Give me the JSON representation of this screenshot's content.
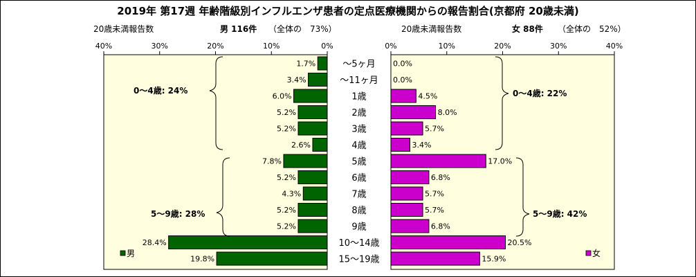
{
  "chart_data": {
    "type": "bar",
    "title": "2019年 第17週 年齢階級別インフルエンザ患者の定点医療機関からの報告割合(京都府 20歳未満)",
    "categories": [
      "〜5ヶ月",
      "〜11ヶ月",
      "1歳",
      "2歳",
      "3歳",
      "4歳",
      "5歳",
      "6歳",
      "7歳",
      "8歳",
      "9歳",
      "10〜14歳",
      "15〜19歳"
    ],
    "series": [
      {
        "name": "男",
        "color": "#006400",
        "values": [
          1.7,
          3.4,
          6.0,
          5.2,
          5.2,
          2.6,
          7.8,
          5.2,
          4.3,
          5.2,
          5.2,
          28.4,
          19.8
        ],
        "labels": [
          "1.7%",
          "3.4%",
          "6.0%",
          "5.2%",
          "5.2%",
          "2.6%",
          "7.8%",
          "5.2%",
          "4.3%",
          "5.2%",
          "5.2%",
          "28.4%",
          "19.8%"
        ]
      },
      {
        "name": "女",
        "color": "#cc00cc",
        "values": [
          0.0,
          0.0,
          4.5,
          8.0,
          5.7,
          3.4,
          17.0,
          6.8,
          5.7,
          5.7,
          6.8,
          20.5,
          15.9
        ],
        "labels": [
          "0.0%",
          "0.0%",
          "4.5%",
          "8.0%",
          "5.7%",
          "3.4%",
          "17.0%",
          "6.8%",
          "5.7%",
          "5.7%",
          "6.8%",
          "20.5%",
          "15.9%"
        ]
      }
    ],
    "xlim": [
      0,
      40
    ],
    "male_ticks": [
      "40%",
      "30%",
      "20%",
      "10%",
      "0%"
    ],
    "female_ticks": [
      "0%",
      "10%",
      "20%",
      "30%",
      "40%"
    ],
    "male_header": {
      "left": "20歳未満報告数",
      "count": "男 116件",
      "share": "（全体の　73%）"
    },
    "female_header": {
      "left": "20歳未満報告数",
      "count": "女 88件",
      "share": "（全体の　52%）"
    },
    "male_groups": [
      "0〜4歳: 24%",
      "5〜9歳: 28%"
    ],
    "female_groups": [
      "0〜4歳: 22%",
      "5〜9歳: 42%"
    ],
    "legend": {
      "male": "男",
      "female": "女"
    },
    "grid": false
  }
}
